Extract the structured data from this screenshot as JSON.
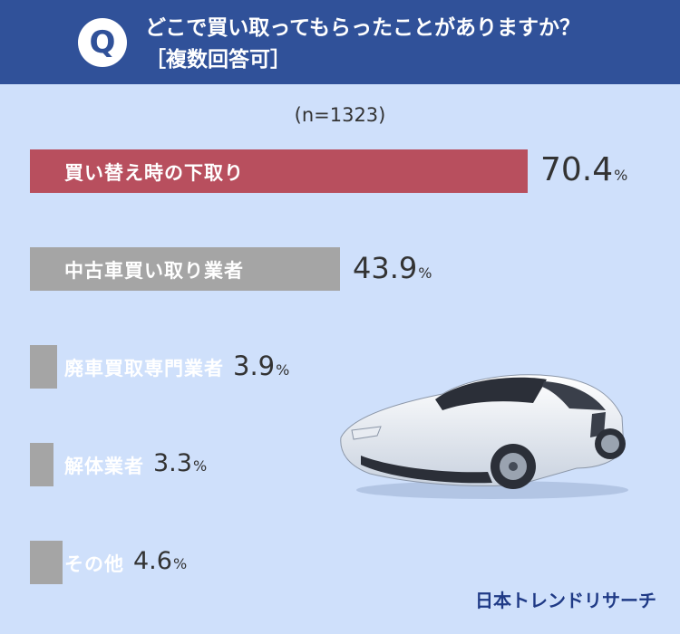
{
  "header": {
    "q_mark": "Q",
    "question": "どこで買い取ってもらったことがありますか？",
    "note": "［複数回答可］"
  },
  "sample": "(n=1323)",
  "logo": "日本トレンドリサーチ",
  "colors": {
    "header": "#305199",
    "background": "#cfe0fb",
    "highlight_bar": "#b84f5e",
    "bar": "#a5a5a5",
    "logo": "#1f3a86"
  },
  "illustration": "white-sports-car",
  "chart_data": {
    "type": "bar",
    "orientation": "horizontal",
    "categories": [
      "買い替え時の下取り",
      "中古車買い取り業者",
      "廃車買取専門業者",
      "解体業者",
      "その他"
    ],
    "values": [
      70.4,
      43.9,
      3.9,
      3.3,
      4.6
    ],
    "value_labels": [
      "70.4",
      "43.9",
      "3.9",
      "3.3",
      "4.6"
    ],
    "unit": "%",
    "highlight_index": 0,
    "xlim": [
      0,
      100
    ],
    "n": 1323
  }
}
